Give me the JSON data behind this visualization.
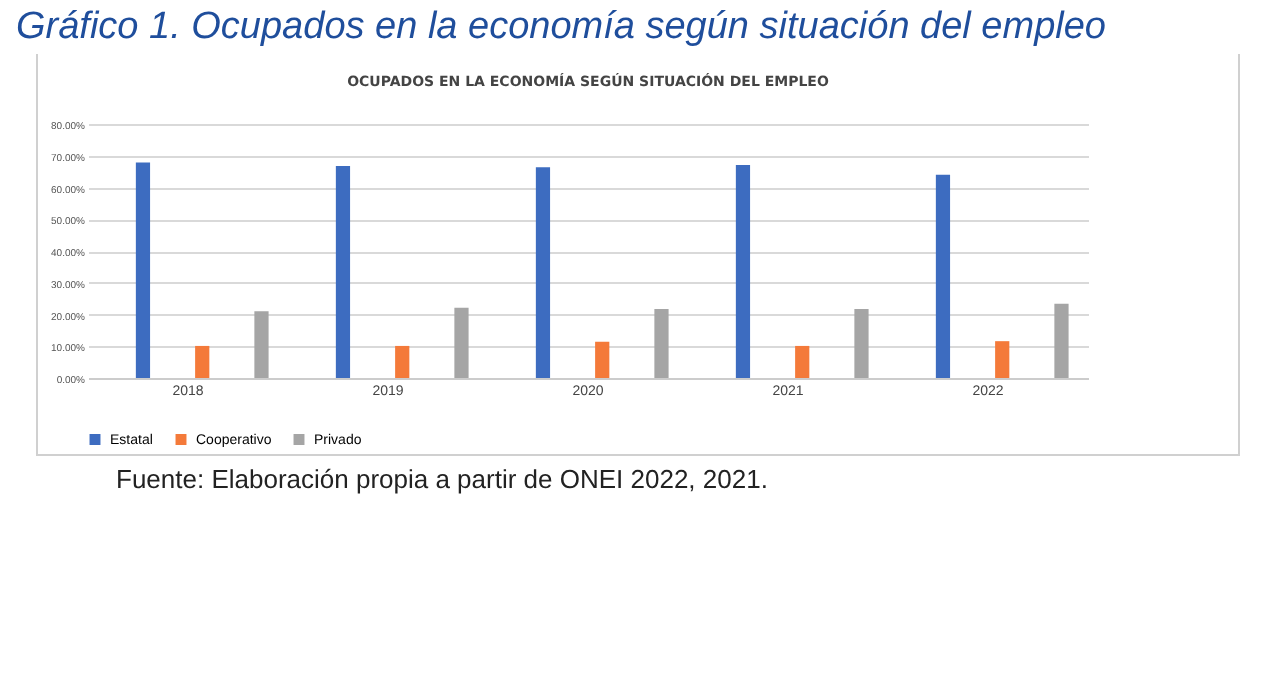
{
  "chart_data": {
    "type": "bar",
    "title": "Gráfico 1. Ocupados en la economía según situación del empleo",
    "subtitle": "OCUPADOS EN LA ECONOMÍA SEGÚN SITUACIÓN DEL EMPLEO",
    "categories": [
      "2018",
      "2019",
      "2020",
      "2021",
      "2022"
    ],
    "series": [
      {
        "name": "Estatal",
        "color": "#3d6cc0",
        "values": [
          67.9,
          66.8,
          66.4,
          67.1,
          64.0
        ]
      },
      {
        "name": "Cooperativo",
        "color": "#f47a3a",
        "values": [
          10.1,
          10.1,
          11.4,
          10.1,
          11.6
        ]
      },
      {
        "name": "Privado",
        "color": "#a5a5a5",
        "values": [
          21.0,
          22.1,
          21.7,
          21.7,
          23.4
        ]
      }
    ],
    "ylim": [
      0,
      80
    ],
    "yticks": [
      {
        "value": 0,
        "label": "0.00%"
      },
      {
        "value": 10,
        "label": "10.00%"
      },
      {
        "value": 20,
        "label": "20.00%"
      },
      {
        "value": 30,
        "label": "30.00%"
      },
      {
        "value": 40,
        "label": "40.00%"
      },
      {
        "value": 50,
        "label": "50.00%"
      },
      {
        "value": 60,
        "label": "60.00%"
      },
      {
        "value": 70,
        "label": "70.00%"
      },
      {
        "value": 80,
        "label": "80.00%"
      }
    ],
    "grid": "y",
    "legend": "bottom",
    "annotations": [
      "Fuente: Elaboración propia a partir de ONEI 2022, 2021."
    ]
  }
}
